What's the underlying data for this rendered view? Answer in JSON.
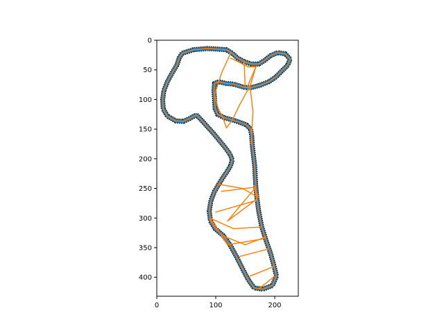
{
  "chart_data": {
    "type": "line",
    "title": "",
    "xlabel": "",
    "ylabel": "",
    "xlim": [
      0,
      240
    ],
    "ylim": [
      432,
      0
    ],
    "y_inverted": true,
    "grid": false,
    "legend": "none",
    "xticks": [
      0,
      100,
      200
    ],
    "yticks": [
      0,
      50,
      100,
      150,
      200,
      250,
      300,
      350,
      400
    ],
    "colors": {
      "outline_blue": "#1f77b4",
      "path_orange": "#ff7f0e",
      "mask_black": "#000000"
    },
    "series": [
      {
        "points": [
          [
            43,
            22
          ],
          [
            62,
            16
          ],
          [
            85,
            14
          ],
          [
            103,
            15
          ],
          [
            118,
            16
          ],
          [
            128,
            22
          ],
          [
            137,
            30
          ],
          [
            148,
            36
          ],
          [
            160,
            40
          ],
          [
            173,
            40
          ],
          [
            183,
            34
          ],
          [
            193,
            26
          ],
          [
            205,
            21
          ],
          [
            218,
            23
          ],
          [
            226,
            32
          ],
          [
            222,
            42
          ],
          [
            212,
            52
          ],
          [
            202,
            62
          ],
          [
            190,
            70
          ],
          [
            175,
            76
          ],
          [
            160,
            80
          ],
          [
            150,
            80
          ],
          [
            140,
            77
          ],
          [
            130,
            74
          ],
          [
            118,
            73
          ],
          [
            105,
            70
          ],
          [
            98,
            73
          ],
          [
            97,
            85
          ],
          [
            98,
            100
          ],
          [
            99,
            115
          ],
          [
            103,
            125
          ],
          [
            115,
            131
          ],
          [
            130,
            135
          ],
          [
            142,
            139
          ],
          [
            152,
            143
          ],
          [
            159,
            150
          ],
          [
            161,
            162
          ],
          [
            162,
            178
          ],
          [
            164,
            195
          ],
          [
            166,
            212
          ],
          [
            167,
            230
          ],
          [
            168,
            248
          ],
          [
            170,
            268
          ],
          [
            173,
            290
          ],
          [
            178,
            315
          ],
          [
            186,
            340
          ],
          [
            193,
            360
          ],
          [
            198,
            378
          ],
          [
            203,
            398
          ],
          [
            196,
            414
          ],
          [
            180,
            420
          ],
          [
            165,
            418
          ],
          [
            155,
            404
          ],
          [
            145,
            385
          ],
          [
            135,
            365
          ],
          [
            124,
            345
          ],
          [
            113,
            330
          ],
          [
            99,
            318
          ],
          [
            91,
            305
          ],
          [
            89,
            288
          ],
          [
            92,
            270
          ],
          [
            98,
            255
          ],
          [
            105,
            243
          ],
          [
            112,
            232
          ],
          [
            119,
            222
          ],
          [
            125,
            212
          ],
          [
            128,
            202
          ],
          [
            124,
            192
          ],
          [
            115,
            180
          ],
          [
            105,
            168
          ],
          [
            96,
            157
          ],
          [
            85,
            145
          ],
          [
            75,
            134
          ],
          [
            67,
            126
          ],
          [
            56,
            132
          ],
          [
            45,
            137
          ],
          [
            32,
            136
          ],
          [
            18,
            128
          ],
          [
            11,
            116
          ],
          [
            10,
            100
          ],
          [
            12,
            85
          ],
          [
            18,
            70
          ],
          [
            25,
            57
          ],
          [
            34,
            42
          ],
          [
            38,
            30
          ],
          [
            43,
            22
          ]
        ]
      },
      {
        "points": [
          [
            43,
            22
          ],
          [
            62,
            16
          ],
          [
            85,
            14
          ],
          [
            103,
            15
          ],
          [
            118,
            16
          ],
          [
            128,
            22
          ],
          [
            137,
            30
          ],
          [
            148,
            36
          ],
          [
            160,
            40
          ],
          [
            173,
            40
          ],
          [
            183,
            34
          ],
          [
            193,
            26
          ],
          [
            205,
            21
          ],
          [
            218,
            23
          ],
          [
            226,
            32
          ],
          [
            222,
            42
          ],
          [
            212,
            52
          ],
          [
            202,
            62
          ],
          [
            190,
            70
          ],
          [
            175,
            76
          ],
          [
            160,
            80
          ],
          [
            150,
            80
          ],
          [
            140,
            77
          ],
          [
            130,
            74
          ],
          [
            118,
            73
          ],
          [
            105,
            70
          ],
          [
            98,
            73
          ],
          [
            97,
            85
          ],
          [
            98,
            100
          ],
          [
            99,
            115
          ],
          [
            103,
            125
          ],
          [
            115,
            131
          ],
          [
            130,
            135
          ],
          [
            142,
            139
          ],
          [
            152,
            143
          ],
          [
            159,
            150
          ],
          [
            161,
            162
          ],
          [
            162,
            178
          ],
          [
            164,
            195
          ],
          [
            166,
            212
          ],
          [
            167,
            230
          ],
          [
            168,
            248
          ],
          [
            170,
            268
          ],
          [
            173,
            290
          ],
          [
            178,
            315
          ],
          [
            186,
            340
          ],
          [
            193,
            360
          ],
          [
            198,
            378
          ],
          [
            203,
            398
          ],
          [
            196,
            414
          ],
          [
            180,
            420
          ],
          [
            165,
            418
          ],
          [
            155,
            404
          ],
          [
            145,
            385
          ],
          [
            135,
            365
          ],
          [
            124,
            345
          ],
          [
            113,
            330
          ],
          [
            99,
            318
          ],
          [
            91,
            305
          ],
          [
            89,
            288
          ],
          [
            92,
            270
          ],
          [
            98,
            255
          ],
          [
            105,
            243
          ],
          [
            112,
            232
          ],
          [
            119,
            222
          ],
          [
            125,
            212
          ],
          [
            128,
            202
          ],
          [
            124,
            192
          ],
          [
            115,
            180
          ],
          [
            105,
            168
          ],
          [
            96,
            157
          ],
          [
            85,
            145
          ],
          [
            75,
            134
          ],
          [
            67,
            126
          ],
          [
            56,
            132
          ],
          [
            45,
            137
          ],
          [
            32,
            136
          ],
          [
            18,
            128
          ],
          [
            11,
            116
          ],
          [
            10,
            100
          ],
          [
            12,
            85
          ],
          [
            18,
            70
          ],
          [
            25,
            57
          ],
          [
            34,
            42
          ],
          [
            38,
            30
          ],
          [
            43,
            22
          ]
        ]
      },
      {
        "points": [
          [
            125,
            22
          ],
          [
            110,
            55
          ],
          [
            98,
            92
          ],
          [
            104,
            115
          ],
          [
            112,
            130
          ],
          [
            118,
            148
          ],
          [
            128,
            135
          ],
          [
            140,
            110
          ],
          [
            152,
            88
          ],
          [
            158,
            78
          ],
          [
            168,
            45
          ]
        ]
      },
      {
        "points": [
          [
            125,
            30
          ],
          [
            155,
            45
          ],
          [
            168,
            45
          ]
        ]
      },
      {
        "points": [
          [
            148,
            35
          ],
          [
            150,
            80
          ],
          [
            158,
            78
          ],
          [
            163,
            120
          ],
          [
            160,
            175
          ]
        ]
      },
      {
        "points": [
          [
            158,
            78
          ],
          [
            155,
            75
          ],
          [
            168,
            45
          ]
        ]
      },
      {
        "points": [
          [
            105,
            243
          ],
          [
            145,
            250
          ],
          [
            172,
            265
          ],
          [
            165,
            245
          ],
          [
            170,
            270
          ],
          [
            100,
            290
          ]
        ]
      },
      {
        "points": [
          [
            110,
            255
          ],
          [
            168,
            248
          ],
          [
            120,
            305
          ],
          [
            170,
            268
          ]
        ]
      },
      {
        "points": [
          [
            90,
            300
          ],
          [
            130,
            318
          ],
          [
            178,
            315
          ]
        ]
      },
      {
        "points": [
          [
            90,
            300
          ],
          [
            120,
            345
          ],
          [
            182,
            335
          ]
        ]
      },
      {
        "points": [
          [
            112,
            330
          ],
          [
            150,
            345
          ],
          [
            185,
            332
          ]
        ]
      },
      {
        "points": [
          [
            140,
            365
          ],
          [
            190,
            352
          ]
        ]
      },
      {
        "points": [
          [
            158,
            398
          ],
          [
            198,
            382
          ]
        ]
      },
      {
        "points": [
          [
            175,
            418
          ],
          [
            200,
            398
          ]
        ]
      }
    ]
  }
}
